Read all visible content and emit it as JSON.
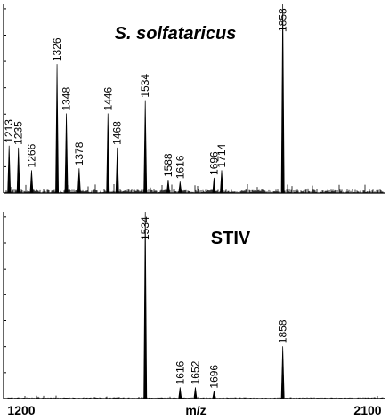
{
  "chart_data": [
    {
      "type": "line",
      "title": "S. solfataricus",
      "xlabel": "m/z",
      "xlim": [
        1200,
        2100
      ],
      "ylim": [
        0,
        100
      ],
      "x_ticks": [
        "1200",
        "2100"
      ],
      "grid": false,
      "peaks": [
        {
          "x": 1213,
          "y": 25,
          "label": "1213"
        },
        {
          "x": 1235,
          "y": 24,
          "label": "1235"
        },
        {
          "x": 1266,
          "y": 12,
          "label": "1266"
        },
        {
          "x": 1326,
          "y": 68,
          "label": "1326"
        },
        {
          "x": 1348,
          "y": 42,
          "label": "1348"
        },
        {
          "x": 1378,
          "y": 13,
          "label": "1378"
        },
        {
          "x": 1446,
          "y": 42,
          "label": "1446"
        },
        {
          "x": 1468,
          "y": 24,
          "label": "1468"
        },
        {
          "x": 1534,
          "y": 49,
          "label": "1534"
        },
        {
          "x": 1588,
          "y": 7,
          "label": "1588"
        },
        {
          "x": 1616,
          "y": 6,
          "label": "1616"
        },
        {
          "x": 1696,
          "y": 8,
          "label": "1696"
        },
        {
          "x": 1714,
          "y": 12,
          "label": "1714"
        },
        {
          "x": 1858,
          "y": 100,
          "label": "1858"
        }
      ]
    },
    {
      "type": "line",
      "title": "STIV",
      "xlabel": "m/z",
      "xlim": [
        1200,
        2100
      ],
      "ylim": [
        0,
        100
      ],
      "x_ticks": [
        "1200",
        "2100"
      ],
      "grid": false,
      "peaks": [
        {
          "x": 1534,
          "y": 100,
          "label": "1534"
        },
        {
          "x": 1616,
          "y": 6,
          "label": "1616"
        },
        {
          "x": 1652,
          "y": 6,
          "label": "1652"
        },
        {
          "x": 1696,
          "y": 4,
          "label": "1696"
        },
        {
          "x": 1858,
          "y": 28,
          "label": "1858"
        }
      ]
    }
  ]
}
